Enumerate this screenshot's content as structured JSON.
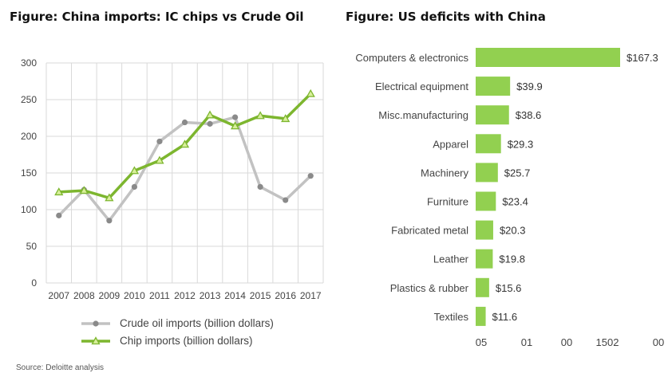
{
  "titles": {
    "left": "Figure: China imports: IC chips vs Crude Oil",
    "right": "Figure: US deficits with China"
  },
  "colors": {
    "crude": "#c2c2c2",
    "crude_marker": "#8a8a8a",
    "chip": "#7db62f",
    "chip_marker_fill": "#d8ef9b",
    "bar": "#92d050",
    "grid": "#d9d9d9"
  },
  "legend": {
    "crude": "Crude oil imports (billion dollars)",
    "chip": "Chip imports (billion dollars)"
  },
  "source": "Source: Deloitte analysis",
  "chart_data": [
    {
      "type": "line",
      "title": "Figure: China imports: IC chips vs Crude Oil",
      "x": [
        "2007",
        "2008",
        "2009",
        "2010",
        "2011",
        "2012",
        "2013",
        "2014",
        "2015",
        "2016",
        "2017"
      ],
      "y_ticks": [
        "0",
        "50",
        "100",
        "150",
        "200",
        "250",
        "300"
      ],
      "ylim": [
        0,
        300
      ],
      "grid": true,
      "legend_position": "bottom",
      "series": [
        {
          "name": "Crude oil imports (billion dollars)",
          "values": [
            92,
            127,
            85,
            131,
            193,
            219,
            217,
            226,
            131,
            113,
            146
          ]
        },
        {
          "name": "Chip imports (billion dollars)",
          "values": [
            124,
            126,
            116,
            153,
            167,
            189,
            229,
            214,
            228,
            224,
            258
          ]
        }
      ]
    },
    {
      "type": "bar",
      "orientation": "horizontal",
      "title": "Figure: US deficits with China",
      "categories": [
        "Computers & electronics",
        "Electrical equipment",
        "Misc.manufacturing",
        "Apparel",
        "Machinery",
        "Furniture",
        "Fabricated metal",
        "Leather",
        "Plastics & rubber",
        "Textiles"
      ],
      "values": [
        167.3,
        39.9,
        38.6,
        29.3,
        25.7,
        23.4,
        20.3,
        19.8,
        15.6,
        11.6
      ],
      "value_labels": [
        "$167.3",
        "$39.9",
        "$38.6",
        "$29.3",
        "$25.7",
        "$23.4",
        "$20.3",
        "$19.8",
        "$15.6",
        "$11.6"
      ],
      "x_ticks": [
        "05",
        "01",
        "00",
        "1502",
        "00"
      ],
      "xlim": [
        0,
        167.3
      ]
    }
  ]
}
